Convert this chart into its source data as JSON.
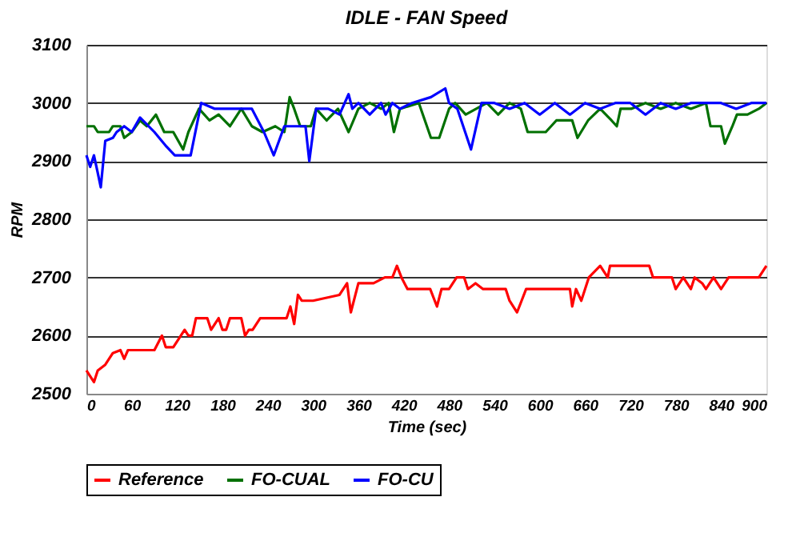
{
  "chart_data": {
    "type": "line",
    "title": "IDLE - FAN Speed",
    "xlabel": "Time (sec)",
    "ylabel": "RPM",
    "xlim": [
      0,
      900
    ],
    "xticks": [
      0,
      60,
      120,
      180,
      240,
      300,
      360,
      420,
      480,
      540,
      600,
      660,
      720,
      780,
      840,
      900
    ],
    "ylim": [
      2500,
      3100
    ],
    "yticks": [
      2500,
      2600,
      2700,
      2800,
      2900,
      3000,
      3100
    ],
    "grid": "y",
    "legend": "bottom",
    "marker": "none",
    "line_style": "solid",
    "series": [
      {
        "name": "Reference",
        "color": "#ff0000",
        "x": [
          0,
          5,
          10,
          15,
          25,
          35,
          45,
          50,
          55,
          90,
          100,
          105,
          115,
          125,
          130,
          135,
          140,
          145,
          160,
          165,
          175,
          180,
          185,
          190,
          205,
          210,
          215,
          220,
          230,
          245,
          265,
          270,
          275,
          280,
          285,
          300,
          335,
          340,
          345,
          350,
          360,
          380,
          395,
          405,
          411,
          417,
          425,
          440,
          455,
          464,
          470,
          480,
          490,
          500,
          505,
          515,
          525,
          545,
          555,
          560,
          570,
          576,
          582,
          590,
          640,
          643,
          648,
          655,
          665,
          680,
          690,
          693,
          700,
          745,
          750,
          765,
          775,
          780,
          790,
          800,
          805,
          815,
          820,
          830,
          840,
          850,
          860,
          870,
          890,
          900
        ],
        "values": [
          2540,
          2530,
          2520,
          2540,
          2550,
          2570,
          2575,
          2560,
          2575,
          2575,
          2600,
          2580,
          2580,
          2600,
          2610,
          2600,
          2600,
          2630,
          2630,
          2610,
          2630,
          2610,
          2610,
          2630,
          2630,
          2600,
          2610,
          2610,
          2630,
          2630,
          2630,
          2650,
          2620,
          2670,
          2660,
          2660,
          2670,
          2680,
          2690,
          2640,
          2690,
          2690,
          2700,
          2700,
          2720,
          2700,
          2680,
          2680,
          2680,
          2650,
          2680,
          2680,
          2700,
          2700,
          2680,
          2690,
          2680,
          2680,
          2680,
          2660,
          2640,
          2660,
          2680,
          2680,
          2680,
          2650,
          2680,
          2660,
          2700,
          2720,
          2700,
          2720,
          2720,
          2720,
          2700,
          2700,
          2700,
          2680,
          2700,
          2680,
          2700,
          2690,
          2680,
          2700,
          2680,
          2700,
          2700,
          2700,
          2700,
          2720
        ]
      },
      {
        "name": "FO-CUAL",
        "color": "#007000",
        "x": [
          0,
          10,
          15,
          30,
          35,
          45,
          50,
          60,
          71,
          80,
          92,
          103,
          115,
          128,
          135,
          149,
          163,
          175,
          190,
          205,
          219,
          233,
          250,
          262,
          269,
          275,
          283,
          297,
          304,
          318,
          333,
          340,
          347,
          360,
          375,
          390,
          400,
          407,
          415,
          440,
          456,
          467,
          480,
          488,
          502,
          516,
          530,
          545,
          560,
          575,
          584,
          600,
          608,
          622,
          643,
          650,
          664,
          680,
          695,
          702,
          707,
          721,
          740,
          760,
          780,
          800,
          820,
          826,
          840,
          845,
          855,
          861,
          875,
          890,
          900
        ],
        "values": [
          2960,
          2960,
          2950,
          2950,
          2960,
          2960,
          2940,
          2950,
          2970,
          2960,
          2980,
          2950,
          2950,
          2920,
          2950,
          2990,
          2970,
          2980,
          2960,
          2990,
          2960,
          2950,
          2960,
          2950,
          3010,
          2990,
          2960,
          2960,
          2990,
          2970,
          2990,
          2970,
          2950,
          2990,
          3000,
          2990,
          3000,
          2950,
          2990,
          3000,
          2940,
          2940,
          2990,
          3000,
          2980,
          2990,
          3000,
          2980,
          3000,
          2990,
          2950,
          2950,
          2950,
          2970,
          2970,
          2940,
          2970,
          2990,
          2970,
          2960,
          2990,
          2990,
          3000,
          2990,
          3000,
          2990,
          3000,
          2960,
          2960,
          2930,
          2960,
          2980,
          2980,
          2990,
          3000
        ]
      },
      {
        "name": "FO-CU",
        "color": "#0000ff",
        "x": [
          0,
          5,
          10,
          15,
          19,
          25,
          35,
          40,
          50,
          60,
          71,
          90,
          106,
          117,
          138,
          152,
          170,
          191,
          219,
          235,
          248,
          262,
          280,
          290,
          295,
          304,
          320,
          335,
          347,
          352,
          360,
          375,
          390,
          396,
          405,
          415,
          431,
          456,
          475,
          480,
          491,
          509,
          523,
          540,
          560,
          580,
          600,
          620,
          640,
          660,
          680,
          700,
          720,
          740,
          760,
          780,
          800,
          820,
          840,
          860,
          880,
          900
        ],
        "values": [
          2910,
          2890,
          2910,
          2880,
          2855,
          2935,
          2940,
          2950,
          2960,
          2950,
          2975,
          2950,
          2925,
          2910,
          2910,
          3000,
          2990,
          2990,
          2990,
          2950,
          2910,
          2960,
          2960,
          2960,
          2900,
          2990,
          2990,
          2980,
          3015,
          2990,
          3000,
          2980,
          3000,
          2980,
          3000,
          2990,
          3000,
          3010,
          3025,
          3000,
          2990,
          2920,
          3000,
          3000,
          2990,
          3000,
          2980,
          3000,
          2980,
          3000,
          2990,
          3000,
          3000,
          2980,
          3000,
          2990,
          3000,
          3000,
          3000,
          2990,
          3000,
          3000
        ]
      }
    ]
  }
}
